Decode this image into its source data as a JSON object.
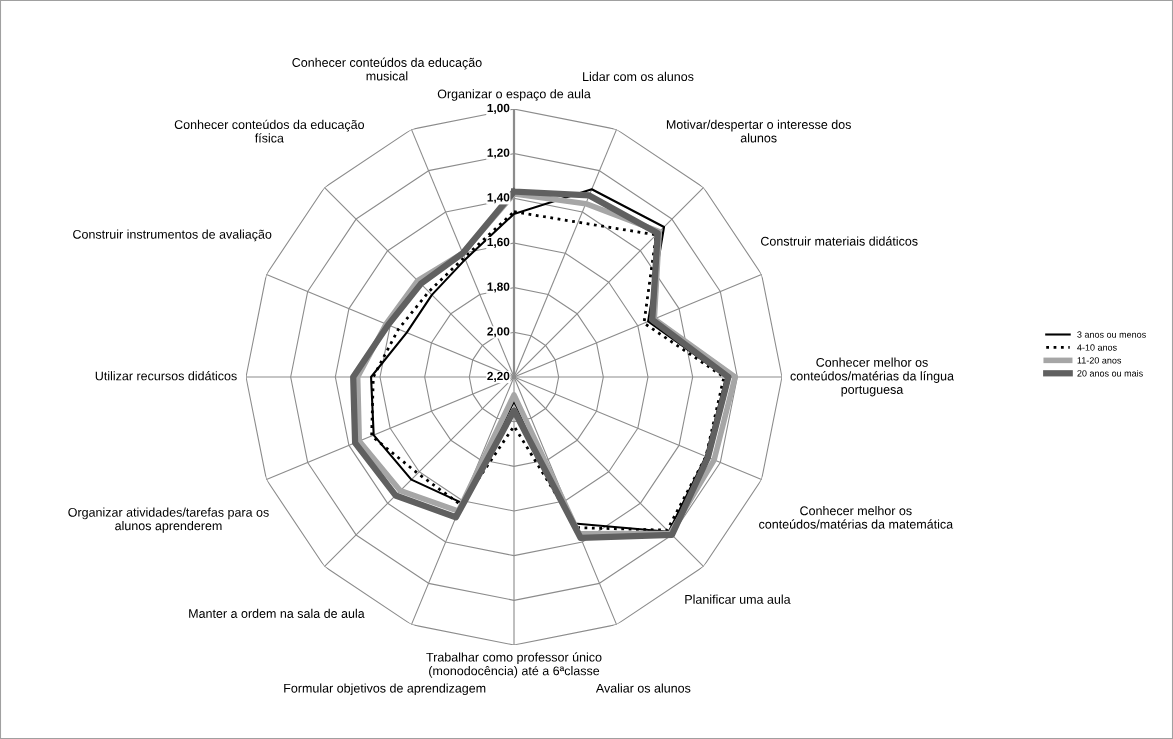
{
  "chart_data": {
    "type": "radar",
    "categories": [
      "Organizar o espaço de aula",
      "Lidar com os alunos",
      "Motivar/despertar o interesse dos\nalunos",
      "Construir materiais didáticos",
      "Conhecer melhor os\nconteúdos/matérias da língua\nportuguesa",
      "Conhecer melhor os\nconteúdos/matérias da matemática",
      "Planificar uma aula",
      "Avaliar os alunos",
      "Trabalhar como professor único\n(monodocência) até a 6ªclasse",
      "Formular objetivos de aprendizagem",
      "Manter a ordem na sala de aula",
      "Organizar atividades/tarefas para os\nalunos aprenderem",
      "Utilizar recursos didáticos",
      "Construir instrumentos de avaliação",
      "Conhecer conteúdos da educação\nfísica",
      "Conhecer conteúdos da educação\nmusical"
    ],
    "series": [
      {
        "name": "3 anos ou menos",
        "color": "#000000",
        "line_style": "solid",
        "values": [
          1.47,
          1.29,
          1.25,
          1.55,
          1.25,
          1.27,
          1.22,
          1.49,
          2.09,
          1.59,
          1.55,
          1.52,
          1.56,
          1.68,
          1.68,
          1.63
        ]
      },
      {
        "name": "4-10 anos",
        "color": "#000000",
        "line_style": "dotted",
        "values": [
          1.46,
          1.45,
          1.3,
          1.57,
          1.26,
          1.27,
          1.23,
          1.47,
          1.98,
          1.58,
          1.59,
          1.51,
          1.57,
          1.64,
          1.66,
          1.62
        ]
      },
      {
        "name": "11-20 anos",
        "color": "#a6a6a6",
        "line_style": "solid",
        "values": [
          1.38,
          1.36,
          1.28,
          1.52,
          1.21,
          1.23,
          1.21,
          1.44,
          2.12,
          1.55,
          1.48,
          1.45,
          1.5,
          1.58,
          1.59,
          1.6
        ]
      },
      {
        "name": "20 anos ou mais",
        "color": "#606060",
        "line_style": "solid",
        "values": [
          1.37,
          1.32,
          1.29,
          1.53,
          1.24,
          1.26,
          1.2,
          1.42,
          2.05,
          1.52,
          1.45,
          1.43,
          1.48,
          1.59,
          1.61,
          1.6
        ]
      }
    ],
    "ylim": [
      2.2,
      1.0
    ],
    "yticks": [
      {
        "value": 1.0,
        "label": "1,00"
      },
      {
        "value": 1.2,
        "label": "1,20"
      },
      {
        "value": 1.4,
        "label": "1,40"
      },
      {
        "value": 1.6,
        "label": "1,60"
      },
      {
        "value": 1.8,
        "label": "1,80"
      },
      {
        "value": 2.0,
        "label": "2,00"
      },
      {
        "value": 2.2,
        "label": "2,20"
      }
    ],
    "grid": true,
    "legend": "right"
  }
}
